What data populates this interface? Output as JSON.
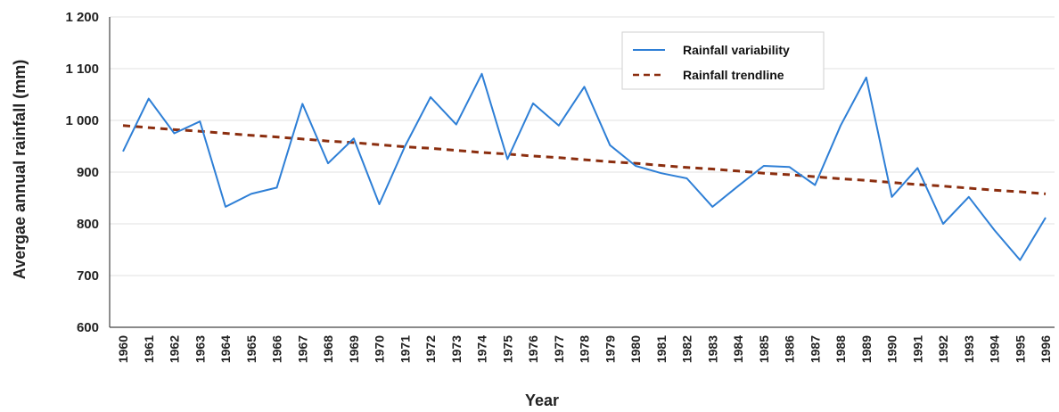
{
  "chart_data": {
    "type": "line",
    "xlabel": "Year",
    "ylabel": "Avergae annual rainfall (mm)",
    "x": [
      1960,
      1961,
      1962,
      1963,
      1964,
      1965,
      1966,
      1967,
      1968,
      1969,
      1970,
      1971,
      1972,
      1973,
      1974,
      1975,
      1976,
      1977,
      1978,
      1979,
      1980,
      1981,
      1982,
      1983,
      1984,
      1985,
      1986,
      1987,
      1988,
      1989,
      1990,
      1991,
      1992,
      1993,
      1994,
      1995,
      1996
    ],
    "ylim": [
      600,
      1200
    ],
    "yticks": [
      600,
      700,
      800,
      900,
      1000,
      1100,
      1200
    ],
    "ytick_labels": [
      "600",
      "700",
      "800",
      "900",
      "1 000",
      "1 100",
      "1 200"
    ],
    "grid": true,
    "legend_position": "top-center",
    "series": [
      {
        "name": "Rainfall variability",
        "color": "#2e7fd6",
        "style": "solid",
        "values": [
          940,
          1042,
          975,
          998,
          833,
          858,
          870,
          1032,
          917,
          965,
          838,
          950,
          1045,
          992,
          1090,
          925,
          1033,
          990,
          1065,
          952,
          912,
          898,
          888,
          833,
          873,
          912,
          910,
          875,
          990,
          1083,
          852,
          908,
          800,
          852,
          788,
          730,
          812
        ]
      },
      {
        "name": "Rainfall trendline",
        "color": "#8b2e0f",
        "style": "dashed",
        "values": [
          990,
          986,
          982,
          979,
          975,
          971,
          968,
          964,
          960,
          957,
          953,
          949,
          946,
          942,
          938,
          935,
          931,
          928,
          924,
          920,
          917,
          913,
          909,
          906,
          902,
          898,
          895,
          891,
          887,
          884,
          880,
          876,
          873,
          869,
          865,
          862,
          858
        ]
      }
    ]
  }
}
